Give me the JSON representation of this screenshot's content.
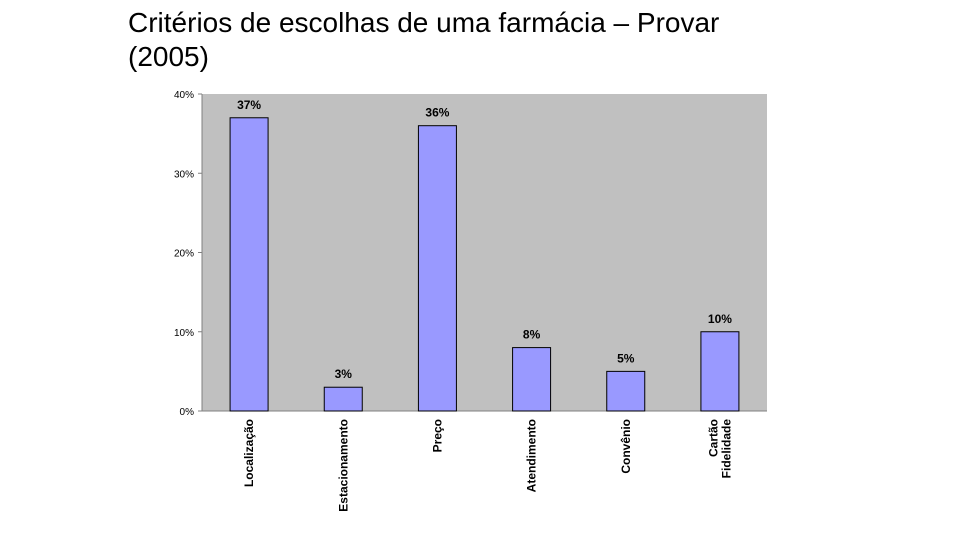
{
  "slide": {
    "title_line1": "Critérios de escolhas de uma farmácia – Provar",
    "title_line2": "(2005)"
  },
  "colors": {
    "plot_background": "#c0c0c0",
    "bar_fill": "#9999ff",
    "bar_stroke": "#000000",
    "axis": "#808080"
  },
  "chart_data": {
    "type": "bar",
    "title": "",
    "xlabel": "",
    "ylabel": "",
    "ylim": [
      0,
      0.4
    ],
    "yticks": [
      0,
      0.1,
      0.2,
      0.3,
      0.4
    ],
    "ytick_labels": [
      "0%",
      "10%",
      "20%",
      "30%",
      "40%"
    ],
    "grid": false,
    "categories": [
      "Localização",
      "Estacionamento",
      "Preço",
      "Atendimento",
      "Convênio",
      "Cartão Fidelidade"
    ],
    "category_lines": [
      [
        "Localização"
      ],
      [
        "Estacionamento"
      ],
      [
        "Preço"
      ],
      [
        "Atendimento"
      ],
      [
        "Convênio"
      ],
      [
        "Cartão",
        "Fidelidade"
      ]
    ],
    "values": [
      0.37,
      0.03,
      0.36,
      0.08,
      0.05,
      0.1
    ],
    "data_labels": [
      "37%",
      "3%",
      "36%",
      "8%",
      "5%",
      "10%"
    ]
  }
}
